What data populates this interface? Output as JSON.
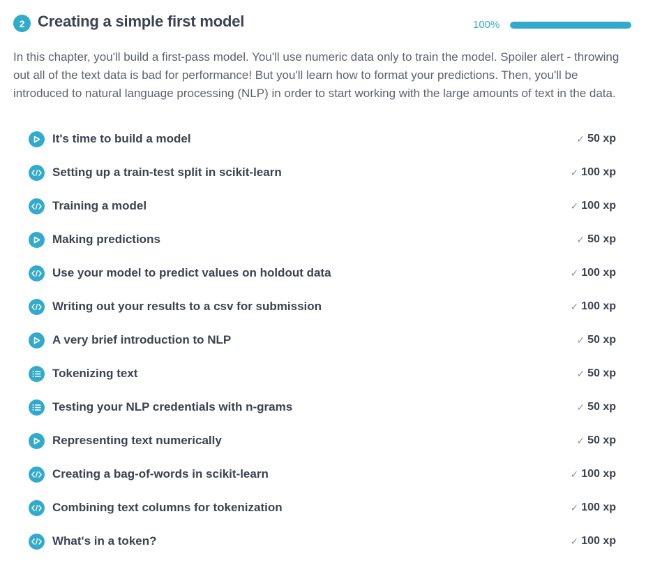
{
  "chapter": {
    "number": "2",
    "title": "Creating a simple first model",
    "progress_label": "100%",
    "progress_fraction": 1.0,
    "description": "In this chapter, you'll build a first-pass model. You'll use numeric data only to train the model. Spoiler alert - throwing out all of the text data is bad for performance! But you'll learn how to format your predictions. Then, you'll be introduced to natural language processing (NLP) in order to start working with the large amounts of text in the data."
  },
  "colors": {
    "accent": "#33aacc",
    "text": "#3d4251",
    "muted": "#5d6170",
    "check": "#8d92a0"
  },
  "lessons": [
    {
      "icon": "video-icon",
      "title": "It's time to build a model",
      "xp": "50 xp"
    },
    {
      "icon": "code-icon",
      "title": "Setting up a train-test split in scikit-learn",
      "xp": "100 xp"
    },
    {
      "icon": "code-icon",
      "title": "Training a model",
      "xp": "100 xp"
    },
    {
      "icon": "video-icon",
      "title": "Making predictions",
      "xp": "50 xp"
    },
    {
      "icon": "code-icon",
      "title": "Use your model to predict values on holdout data",
      "xp": "100 xp"
    },
    {
      "icon": "code-icon",
      "title": "Writing out your results to a csv for submission",
      "xp": "100 xp"
    },
    {
      "icon": "video-icon",
      "title": "A very brief introduction to NLP",
      "xp": "50 xp"
    },
    {
      "icon": "list-icon",
      "title": "Tokenizing text",
      "xp": "50 xp"
    },
    {
      "icon": "list-icon",
      "title": "Testing your NLP credentials with n-grams",
      "xp": "50 xp"
    },
    {
      "icon": "video-icon",
      "title": "Representing text numerically",
      "xp": "50 xp"
    },
    {
      "icon": "code-icon",
      "title": "Creating a bag-of-words in scikit-learn",
      "xp": "100 xp"
    },
    {
      "icon": "code-icon",
      "title": "Combining text columns for tokenization",
      "xp": "100 xp"
    },
    {
      "icon": "code-icon",
      "title": "What's in a token?",
      "xp": "100 xp"
    }
  ]
}
